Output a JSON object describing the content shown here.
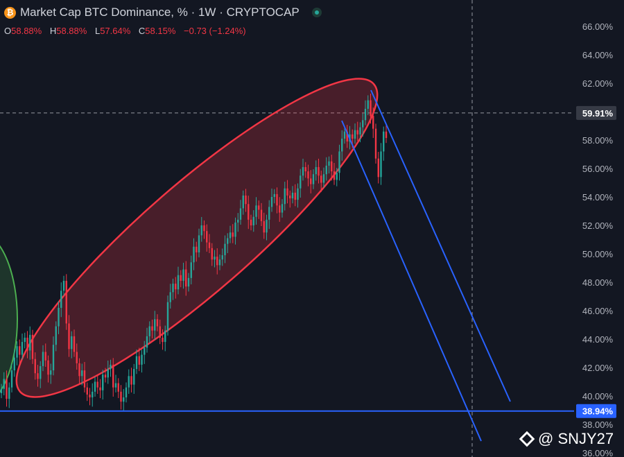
{
  "header": {
    "coin_icon": "bitcoin-icon",
    "title": "Market Cap BTC Dominance, % · 1W · CRYPTOCAP",
    "status_icon": "market-open-dot-icon"
  },
  "ohlc": {
    "o_label": "O",
    "o_value": "58.88%",
    "h_label": "H",
    "h_value": "58.88%",
    "l_label": "L",
    "l_value": "57.64%",
    "c_label": "C",
    "c_value": "58.15%",
    "change": "−0.73 (−1.24%)"
  },
  "watermark": "@ SNJY27",
  "colors": {
    "background": "#131722",
    "up": "#26a69a",
    "down": "#f23645",
    "ellipse": "#f23645",
    "channel": "#2962ff",
    "support": "#2962ff",
    "green_ellipse": "#4caf50"
  },
  "chart_data": {
    "type": "candlestick",
    "ylim": [
      35.8,
      67
    ],
    "y_ticks": [
      "66.00%",
      "64.00%",
      "62.00%",
      "58.00%",
      "56.00%",
      "54.00%",
      "52.00%",
      "50.00%",
      "48.00%",
      "46.00%",
      "44.00%",
      "42.00%",
      "40.00%",
      "38.00%",
      "36.00%"
    ],
    "y_tick_values": [
      66,
      64,
      62,
      58,
      56,
      54,
      52,
      50,
      48,
      46,
      44,
      42,
      40,
      38,
      36
    ],
    "crosshair_value": 59.91,
    "crosshair_label": "59.91%",
    "support_value": 38.94,
    "support_label": "38.94%",
    "closes": [
      40.5,
      41.2,
      39.8,
      40.6,
      41.8,
      42.7,
      43.5,
      42.9,
      43.8,
      44.1,
      43.2,
      44.3,
      42.6,
      41.6,
      41.2,
      42.1,
      43.1,
      42.5,
      41.5,
      41.8,
      43.6,
      44.9,
      46.2,
      47.4,
      48.1,
      45.1,
      43.3,
      44.2,
      43.1,
      42.3,
      41.4,
      41.8,
      40.6,
      40.1,
      39.9,
      40.3,
      41.0,
      40.6,
      40.4,
      41.5,
      41.3,
      41.9,
      42.2,
      40.6,
      40.9,
      40.3,
      39.6,
      39.9,
      40.6,
      41.4,
      40.8,
      41.9,
      42.8,
      42.2,
      42.9,
      43.4,
      44.2,
      44.9,
      44.6,
      45.4,
      44.9,
      44.1,
      43.8,
      44.6,
      46.6,
      47.3,
      47.9,
      47.5,
      48.5,
      48.1,
      48.9,
      47.7,
      48.3,
      49.4,
      50.5,
      50.1,
      51.3,
      52.0,
      51.6,
      50.8,
      50.4,
      49.6,
      49.8,
      49.2,
      49.6,
      49.9,
      50.7,
      51.1,
      51.5,
      51.2,
      52.2,
      52.4,
      53.2,
      54.1,
      53.5,
      52.4,
      52.0,
      52.6,
      53.4,
      53.1,
      52.3,
      51.5,
      52.4,
      53.3,
      54.0,
      54.2,
      53.4,
      52.9,
      53.5,
      54.6,
      54.1,
      53.9,
      54.3,
      53.8,
      54.6,
      55.5,
      56.1,
      55.8,
      55.3,
      54.9,
      55.6,
      56.1,
      55.5,
      55.0,
      55.6,
      56.2,
      56.5,
      55.8,
      55.2,
      55.7,
      57.2,
      58.1,
      58.6,
      57.9,
      58.4,
      58.1,
      58.7,
      58.4,
      58.9,
      59.4,
      60.2,
      60.8,
      59.7,
      58.8,
      56.7,
      55.4,
      57.2,
      58.6,
      58.15
    ]
  }
}
